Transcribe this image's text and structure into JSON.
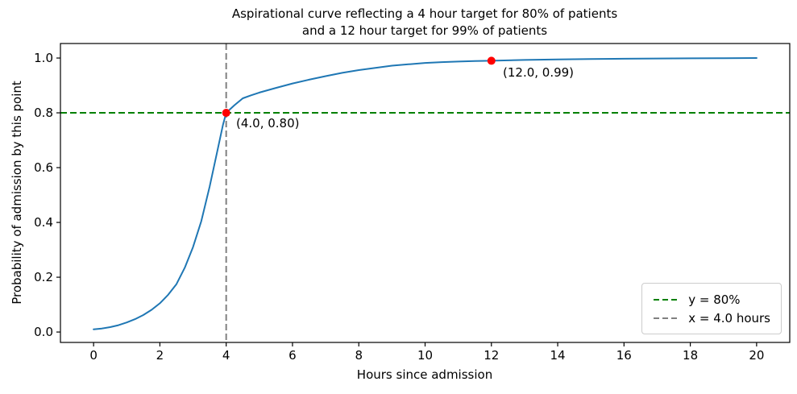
{
  "figure": {
    "title_line1": "Aspirational curve reflecting a 4 hour target for 80% of patients",
    "title_line2": "and a 12 hour target for 99% of patients"
  },
  "chart_data": {
    "type": "line",
    "title": "Aspirational curve reflecting a 4 hour target for 80% of patients and a 12 hour target for 99% of patients",
    "xlabel": "Hours since admission",
    "ylabel": "Probability of admission by this point",
    "xlim": [
      -1,
      21
    ],
    "ylim": [
      -0.038,
      1.053
    ],
    "x_ticks": [
      0,
      2,
      4,
      6,
      8,
      10,
      12,
      14,
      16,
      18,
      20
    ],
    "x_tick_labels": [
      "0",
      "2",
      "4",
      "6",
      "8",
      "10",
      "12",
      "14",
      "16",
      "18",
      "20"
    ],
    "y_ticks": [
      0.0,
      0.2,
      0.4,
      0.6,
      0.8,
      1.0
    ],
    "y_tick_labels": [
      "0.0",
      "0.2",
      "0.4",
      "0.6",
      "0.8",
      "1.0"
    ],
    "grid": false,
    "frame_color": "#000000",
    "series": [
      {
        "name": "aspirational-curve",
        "color": "#1f77b4",
        "linewidth": 2,
        "points": [
          [
            0,
            0.01
          ],
          [
            0.25,
            0.013
          ],
          [
            0.5,
            0.018
          ],
          [
            0.75,
            0.025
          ],
          [
            1,
            0.035
          ],
          [
            1.25,
            0.047
          ],
          [
            1.5,
            0.062
          ],
          [
            1.75,
            0.081
          ],
          [
            2,
            0.105
          ],
          [
            2.25,
            0.136
          ],
          [
            2.5,
            0.175
          ],
          [
            2.75,
            0.235
          ],
          [
            3,
            0.31
          ],
          [
            3.25,
            0.405
          ],
          [
            3.5,
            0.53
          ],
          [
            3.75,
            0.67
          ],
          [
            3.9,
            0.755
          ],
          [
            4,
            0.8
          ],
          [
            4.25,
            0.828
          ],
          [
            4.5,
            0.853
          ],
          [
            4.75,
            0.864
          ],
          [
            5,
            0.874
          ],
          [
            5.5,
            0.891
          ],
          [
            6,
            0.907
          ],
          [
            6.5,
            0.921
          ],
          [
            7,
            0.934
          ],
          [
            7.5,
            0.946
          ],
          [
            8,
            0.956
          ],
          [
            8.5,
            0.964
          ],
          [
            9,
            0.972
          ],
          [
            9.5,
            0.977
          ],
          [
            10,
            0.982
          ],
          [
            10.5,
            0.985
          ],
          [
            11,
            0.987
          ],
          [
            11.5,
            0.989
          ],
          [
            12,
            0.99
          ],
          [
            13,
            0.993
          ],
          [
            14,
            0.995
          ],
          [
            15,
            0.9965
          ],
          [
            16,
            0.9975
          ],
          [
            17,
            0.9983
          ],
          [
            18,
            0.999
          ],
          [
            19,
            0.9995
          ],
          [
            20,
            1.0
          ]
        ]
      }
    ],
    "reference_lines": [
      {
        "orientation": "horizontal",
        "value": 0.8,
        "color": "#008000",
        "style": "dashed",
        "name": "target-80pct-line"
      },
      {
        "orientation": "vertical",
        "value": 4.0,
        "color": "#808080",
        "style": "dashed",
        "name": "target-4hr-line"
      }
    ],
    "markers": [
      {
        "x": 4.0,
        "y": 0.8,
        "color": "#ff0000",
        "label": "(4.0, 0.80)"
      },
      {
        "x": 12.0,
        "y": 0.99,
        "color": "#ff0000",
        "label": "(12.0, 0.99)"
      }
    ],
    "legend": {
      "position": "lower right",
      "entries": [
        {
          "label": "y = 80%",
          "color": "#008000",
          "dash": "8,4"
        },
        {
          "label": "x = 4.0 hours",
          "color": "#808080",
          "dash": "8,4"
        }
      ]
    }
  }
}
